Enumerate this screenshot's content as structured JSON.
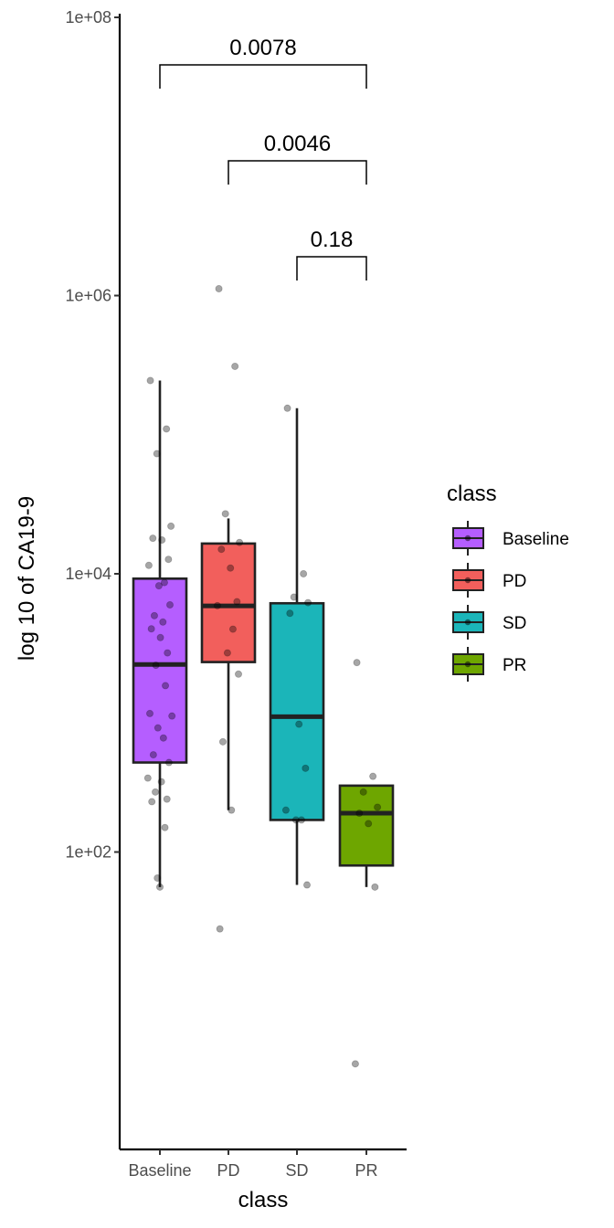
{
  "chart_data": {
    "type": "boxplot",
    "title": "",
    "xlabel": "class",
    "ylabel": "log 10 of CA19-9",
    "y_scale": "log10",
    "ylim": [
      1,
      100000000
    ],
    "y_ticks": [
      100,
      10000,
      1000000,
      100000000
    ],
    "y_tick_labels": [
      "1e+02",
      "1e+04",
      "1e+06",
      "1e+08"
    ],
    "categories": [
      "Baseline",
      "PD",
      "SD",
      "PR"
    ],
    "colors": {
      "Baseline": "#b55eff",
      "PD": "#f25f5c",
      "SD": "#1bb5b9",
      "PR": "#6ea600"
    },
    "boxes": [
      {
        "category": "Baseline",
        "whisker_low": 56,
        "q1": 440,
        "median": 2230,
        "q3": 9230,
        "whisker_high": 245000
      },
      {
        "category": "PD",
        "whisker_low": 200,
        "q1": 2320,
        "median": 5880,
        "q3": 16500,
        "whisker_high": 25000
      },
      {
        "category": "SD",
        "whisker_low": 58,
        "q1": 170,
        "median": 940,
        "q3": 6140,
        "whisker_high": 155000
      },
      {
        "category": "PR",
        "whisker_low": 56,
        "q1": 80,
        "median": 190,
        "q3": 300,
        "whisker_high": 300
      }
    ],
    "points": [
      {
        "category": "Baseline",
        "values": [
          245000,
          110000,
          73000,
          22000,
          18000,
          17500,
          12700,
          11500,
          8650,
          8200,
          5980,
          5000,
          4500,
          4020,
          3480,
          2700,
          2200,
          1570,
          990,
          950,
          780,
          660,
          500,
          440,
          340,
          320,
          270,
          240,
          230,
          150,
          65,
          56
        ]
      },
      {
        "category": "PD",
        "values": [
          1120000,
          310000,
          27000,
          16800,
          15000,
          11000,
          6300,
          5900,
          4000,
          2700,
          1900,
          620,
          200,
          28
        ]
      },
      {
        "category": "SD",
        "values": [
          155000,
          10000,
          6800,
          6200,
          5200,
          830,
          400,
          200,
          170,
          170,
          58
        ]
      },
      {
        "category": "PR",
        "values": [
          2300,
          350,
          270,
          210,
          190,
          160,
          56,
          3
        ]
      }
    ],
    "comparisons": [
      {
        "from": "Baseline",
        "to": "PR",
        "label": "0.0078"
      },
      {
        "from": "PD",
        "to": "PR",
        "label": "0.0046"
      },
      {
        "from": "SD",
        "to": "PR",
        "label": "0.18"
      }
    ],
    "legend": {
      "title": "class",
      "placement": "right",
      "entries": [
        "Baseline",
        "PD",
        "SD",
        "PR"
      ]
    }
  }
}
